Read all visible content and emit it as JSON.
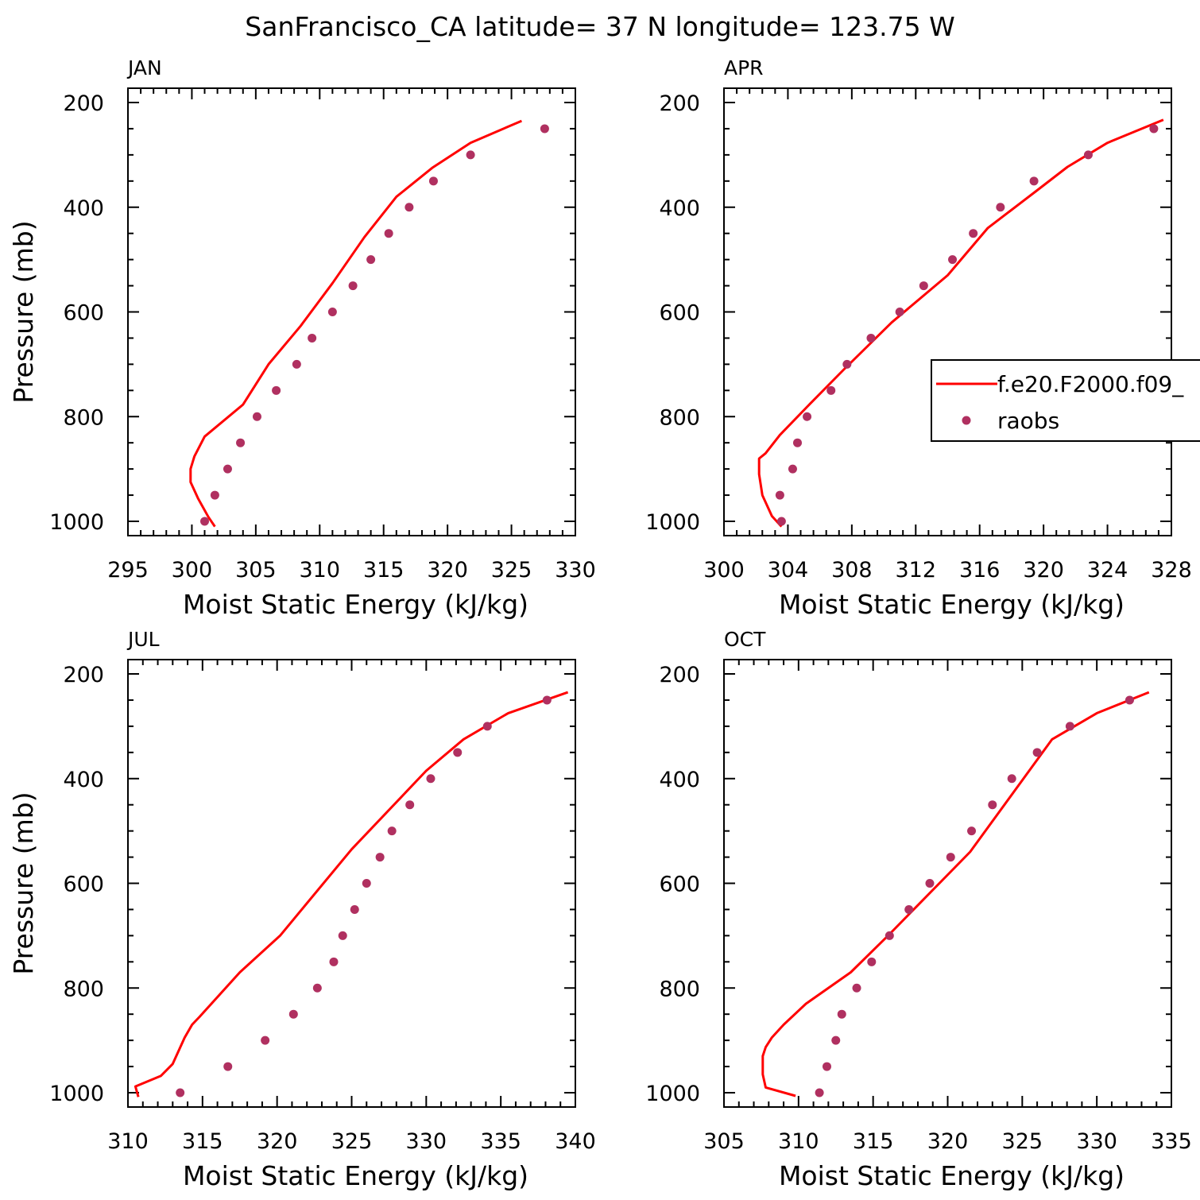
{
  "figure_title": "SanFrancisco_CA  latitude= 37 N longitude= 123.75 W",
  "legend": {
    "model_label": "f.e20.F2000.f09_",
    "obs_label": "raobs",
    "placement": "right, APR panel"
  },
  "colors": {
    "model": "#ff0000",
    "obs": "#b03060",
    "axis": "#000000"
  },
  "chart_data": [
    {
      "type": "line",
      "title": "JAN",
      "xlabel": "Moist Static Energy (kJ/kg)",
      "ylabel": "Pressure (mb)",
      "xlim": [
        295,
        330
      ],
      "ylim": [
        1000,
        200
      ],
      "xticks": [
        "295",
        "300",
        "305",
        "310",
        "315",
        "320",
        "325",
        "330"
      ],
      "xtick_values": [
        295,
        300,
        305,
        310,
        315,
        320,
        325,
        330
      ],
      "yticks": [
        "200",
        "400",
        "600",
        "800",
        "1000"
      ],
      "ytick_values": [
        200,
        400,
        600,
        800,
        1000
      ],
      "series": [
        {
          "name": "f.e20.F2000.f09_",
          "kind": "line",
          "x": [
            301.8,
            301.3,
            300.5,
            299.9,
            299.9,
            300.2,
            301.0,
            304.0,
            306.0,
            308.5,
            311.0,
            313.5,
            316.0,
            318.8,
            321.8,
            325.8
          ],
          "y": [
            1010,
            992,
            957,
            925,
            900,
            876,
            838,
            777,
            700,
            627,
            545,
            457,
            380,
            325,
            277,
            235
          ]
        },
        {
          "name": "raobs",
          "kind": "scatter",
          "x": [
            301.0,
            301.8,
            302.8,
            303.8,
            305.1,
            306.6,
            308.2,
            309.4,
            311.0,
            312.6,
            314.0,
            315.4,
            317.0,
            318.9,
            321.8,
            327.6
          ],
          "y": [
            1000,
            950,
            900,
            850,
            800,
            750,
            700,
            650,
            600,
            550,
            500,
            450,
            400,
            350,
            300,
            250
          ]
        }
      ]
    },
    {
      "type": "line",
      "title": "APR",
      "xlabel": "Moist Static Energy (kJ/kg)",
      "ylabel": "",
      "xlim": [
        300,
        328
      ],
      "ylim": [
        1000,
        200
      ],
      "xticks": [
        "300",
        "304",
        "308",
        "312",
        "316",
        "320",
        "324",
        "328"
      ],
      "xtick_values": [
        300,
        304,
        308,
        312,
        316,
        320,
        324,
        328
      ],
      "yticks": [
        "200",
        "400",
        "600",
        "800",
        "1000"
      ],
      "ytick_values": [
        200,
        400,
        600,
        800,
        1000
      ],
      "series": [
        {
          "name": "f.e20.F2000.f09_",
          "kind": "line",
          "x": [
            303.6,
            303.0,
            302.4,
            302.2,
            302.2,
            302.6,
            303.5,
            305.4,
            307.5,
            310.5,
            314.0,
            316.5,
            319.5,
            321.5,
            324.0,
            327.5
          ],
          "y": [
            1010,
            990,
            950,
            910,
            880,
            870,
            835,
            775,
            710,
            620,
            530,
            440,
            370,
            323,
            277,
            233
          ]
        },
        {
          "name": "raobs",
          "kind": "scatter",
          "x": [
            303.6,
            303.5,
            304.3,
            304.6,
            305.2,
            306.7,
            307.7,
            309.2,
            311.0,
            312.5,
            314.3,
            315.6,
            317.3,
            319.4,
            322.8,
            326.9
          ],
          "y": [
            1000,
            950,
            900,
            850,
            800,
            750,
            700,
            650,
            600,
            550,
            500,
            450,
            400,
            350,
            300,
            250
          ]
        }
      ]
    },
    {
      "type": "line",
      "title": "JUL",
      "xlabel": "Moist Static Energy (kJ/kg)",
      "ylabel": "Pressure (mb)",
      "xlim": [
        310,
        340
      ],
      "ylim": [
        1000,
        200
      ],
      "xticks": [
        "310",
        "315",
        "320",
        "325",
        "330",
        "335",
        "340"
      ],
      "xtick_values": [
        310,
        315,
        320,
        325,
        330,
        335,
        340
      ],
      "yticks": [
        "200",
        "400",
        "600",
        "800",
        "1000"
      ],
      "ytick_values": [
        200,
        400,
        600,
        800,
        1000
      ],
      "series": [
        {
          "name": "f.e20.F2000.f09_",
          "kind": "line",
          "x": [
            310.7,
            310.5,
            312.2,
            313.0,
            313.8,
            314.3,
            314.8,
            317.5,
            320.2,
            325.0,
            330.0,
            332.5,
            335.5,
            339.5
          ],
          "y": [
            1008,
            988,
            968,
            945,
            895,
            870,
            855,
            770,
            700,
            535,
            385,
            325,
            275,
            235
          ]
        },
        {
          "name": "raobs",
          "kind": "scatter",
          "x": [
            313.5,
            316.7,
            319.2,
            321.1,
            322.7,
            323.8,
            324.4,
            325.2,
            326.0,
            326.9,
            327.7,
            328.9,
            330.3,
            332.1,
            334.1,
            338.1
          ],
          "y": [
            1000,
            950,
            900,
            850,
            800,
            750,
            700,
            650,
            600,
            550,
            500,
            450,
            400,
            350,
            300,
            250
          ]
        }
      ]
    },
    {
      "type": "line",
      "title": "OCT",
      "xlabel": "Moist Static Energy (kJ/kg)",
      "ylabel": "",
      "xlim": [
        305,
        335
      ],
      "ylim": [
        1000,
        200
      ],
      "xticks": [
        "305",
        "310",
        "315",
        "320",
        "325",
        "330",
        "335"
      ],
      "xtick_values": [
        305,
        310,
        315,
        320,
        325,
        330,
        335
      ],
      "yticks": [
        "200",
        "400",
        "600",
        "800",
        "1000"
      ],
      "ytick_values": [
        200,
        400,
        600,
        800,
        1000
      ],
      "series": [
        {
          "name": "f.e20.F2000.f09_",
          "kind": "line",
          "x": [
            309.8,
            307.8,
            307.6,
            307.6,
            307.8,
            308.2,
            309.0,
            310.5,
            313.5,
            316.0,
            321.5,
            327.0,
            330.0,
            333.5
          ],
          "y": [
            1006,
            990,
            965,
            930,
            913,
            895,
            870,
            830,
            770,
            700,
            540,
            325,
            275,
            235
          ]
        },
        {
          "name": "raobs",
          "kind": "scatter",
          "x": [
            311.4,
            311.9,
            312.5,
            312.9,
            313.9,
            314.9,
            316.1,
            317.4,
            318.8,
            320.2,
            321.6,
            323.0,
            324.3,
            326.0,
            328.2,
            332.2
          ],
          "y": [
            1000,
            950,
            900,
            850,
            800,
            750,
            700,
            650,
            600,
            550,
            500,
            450,
            400,
            350,
            300,
            250
          ]
        }
      ]
    }
  ]
}
